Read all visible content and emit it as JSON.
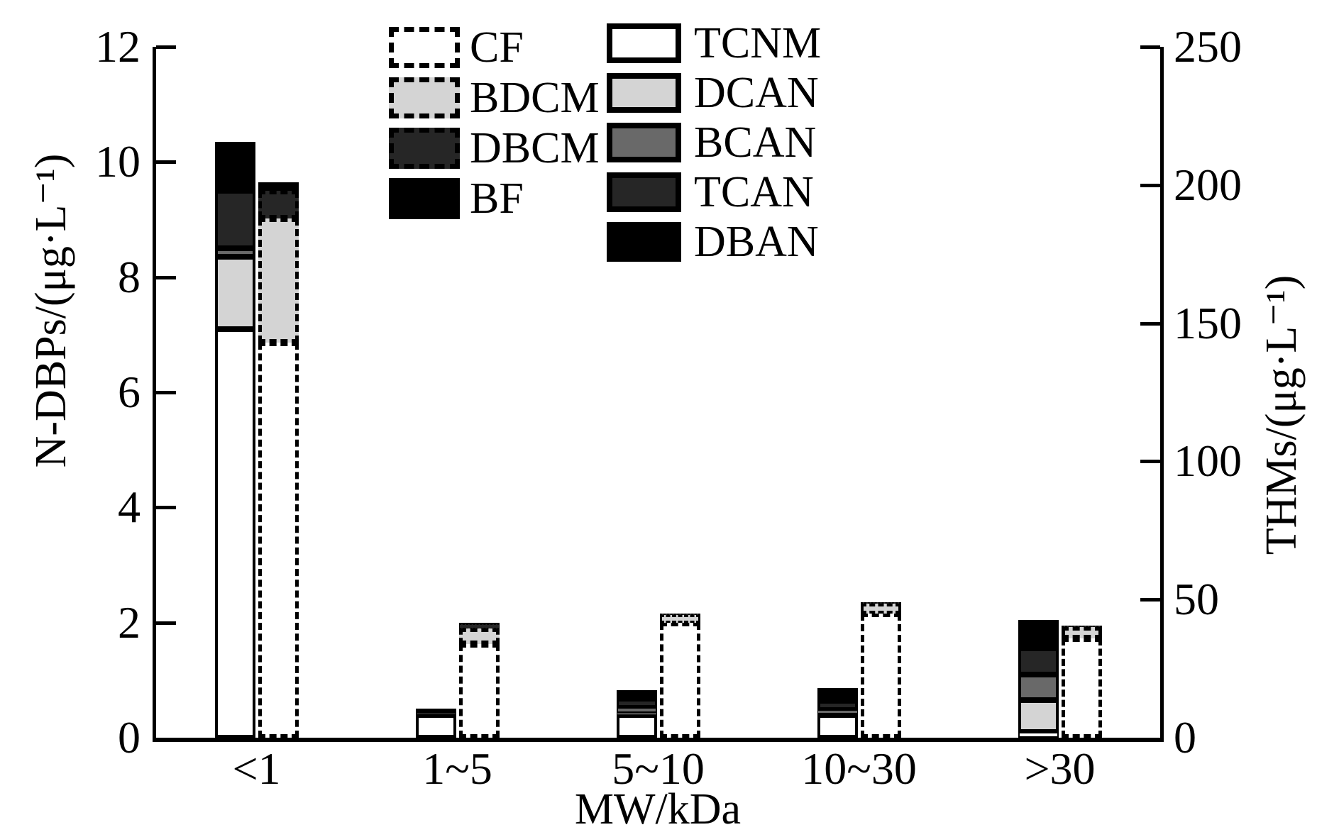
{
  "chart_data": {
    "type": "bar",
    "title": "",
    "categories": [
      "<1",
      "1~5",
      "5~10",
      "10~30",
      ">30"
    ],
    "x_axis": {
      "label": "MW/kDa"
    },
    "left_axis": {
      "label": "N-DBPs/(μg·L⁻¹)",
      "min": 0,
      "max": 12,
      "ticks": [
        0,
        2,
        4,
        6,
        8,
        10,
        12
      ]
    },
    "right_axis": {
      "label": "THMs/(μg·L⁻¹)",
      "min": 0,
      "max": 250,
      "ticks": [
        0,
        50,
        100,
        150,
        200,
        250
      ]
    },
    "grid": false,
    "series": [
      {
        "name": "TCNM",
        "group": "N-DBPs",
        "axis": "left",
        "bar_style": "solid",
        "color": "#ffffff",
        "values": [
          7.1,
          0.4,
          0.4,
          0.4,
          0.1
        ]
      },
      {
        "name": "DCAN",
        "group": "N-DBPs",
        "axis": "left",
        "bar_style": "solid",
        "color": "#d4d4d4",
        "values": [
          1.25,
          0.0,
          0.03,
          0.02,
          0.55
        ]
      },
      {
        "name": "BCAN",
        "group": "N-DBPs",
        "axis": "left",
        "bar_style": "solid",
        "color": "#696969",
        "values": [
          0.15,
          0.0,
          0.1,
          0.06,
          0.45
        ]
      },
      {
        "name": "TCAN",
        "group": "N-DBPs",
        "axis": "left",
        "bar_style": "solid",
        "color": "#262626",
        "values": [
          1.0,
          0.04,
          0.13,
          0.16,
          0.45
        ]
      },
      {
        "name": "DBAN",
        "group": "N-DBPs",
        "axis": "left",
        "bar_style": "solid",
        "color": "#000000",
        "values": [
          0.85,
          0.06,
          0.16,
          0.22,
          0.5
        ]
      },
      {
        "name": "CF",
        "group": "THMs",
        "axis": "right",
        "bar_style": "dashed",
        "color": "#ffffff",
        "values": [
          143,
          34,
          41.5,
          45,
          36
        ]
      },
      {
        "name": "BDCM",
        "group": "THMs",
        "axis": "right",
        "bar_style": "dashed",
        "color": "#d4d4d4",
        "values": [
          45,
          5.5,
          3.0,
          3.5,
          4.0
        ]
      },
      {
        "name": "DBCM",
        "group": "THMs",
        "axis": "right",
        "bar_style": "dashed",
        "color": "#262626",
        "values": [
          10,
          1.5,
          0.5,
          0.5,
          0.5
        ]
      },
      {
        "name": "BF",
        "group": "THMs",
        "axis": "right",
        "bar_style": "dashed",
        "color": "#000000",
        "values": [
          3,
          0.5,
          0,
          0,
          0
        ]
      }
    ],
    "legends": [
      {
        "id": "thms-legend",
        "swatch_border": "dashed",
        "items": [
          "CF",
          "BDCM",
          "DBCM",
          "BF"
        ]
      },
      {
        "id": "ndbps-legend",
        "swatch_border": "solid",
        "items": [
          "TCNM",
          "DCAN",
          "BCAN",
          "TCAN",
          "DBAN"
        ]
      }
    ]
  }
}
